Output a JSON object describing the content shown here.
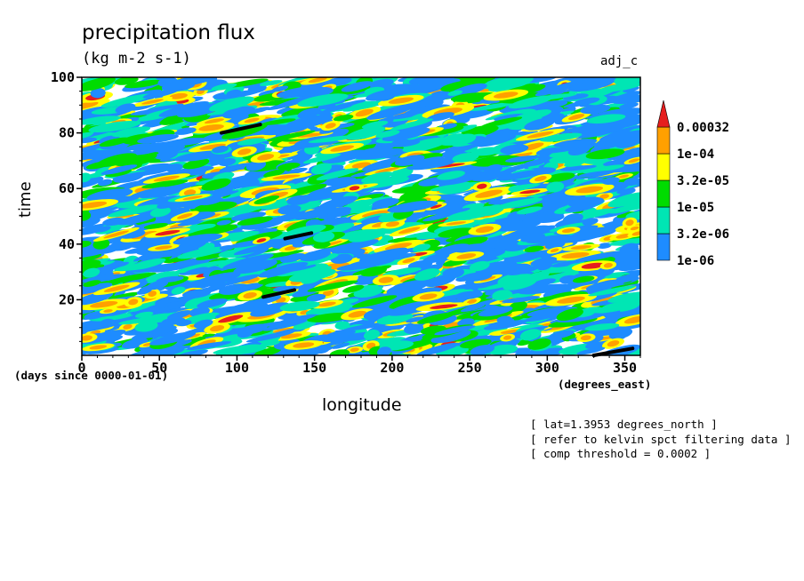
{
  "chart_data": {
    "type": "heatmap",
    "title": "precipitation flux",
    "units": "(kg m-2 s-1)",
    "run_label": "adj_c",
    "xlabel": "longitude",
    "x_units": "(degrees_east)",
    "ylabel": "time",
    "y_units": "(days since 0000-01-01)",
    "xlim": [
      0,
      360
    ],
    "ylim": [
      0,
      100
    ],
    "x_ticks": [
      0,
      50,
      100,
      150,
      200,
      250,
      300,
      350
    ],
    "y_ticks": [
      20,
      40,
      60,
      80,
      100
    ],
    "colorbar": {
      "levels": [
        "1e-06",
        "3.2e-06",
        "1e-05",
        "3.2e-05",
        "1e-04",
        "0.00032"
      ],
      "colors": [
        "#1e8cff",
        "#00e6b4",
        "#00dc00",
        "#ffff00",
        "#ffa000",
        "#e61e1e"
      ]
    },
    "highlight_segments": [
      {
        "lon": [
          90,
          115
        ],
        "time": [
          80,
          83
        ]
      },
      {
        "lon": [
          131,
          148
        ],
        "time": [
          42,
          44
        ]
      },
      {
        "lon": [
          117,
          137
        ],
        "time": [
          21,
          23.5
        ]
      },
      {
        "lon": [
          330,
          355
        ],
        "time": [
          0,
          2.5
        ]
      }
    ],
    "notes": [
      "[ lat=1.3953 degrees_north ]",
      "[ refer to kelvin spct filtering data ]",
      "[ comp threshold = 0.0002 ]"
    ]
  }
}
